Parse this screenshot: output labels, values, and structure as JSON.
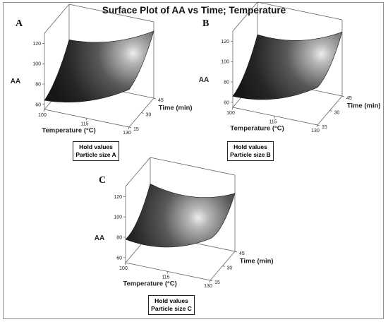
{
  "title": "Surface Plot of AA vs Time; Temperature",
  "chart_data": [
    {
      "type": "surface",
      "panel": "A",
      "xlabel": "Temperature (°C)",
      "ylabel": "Time (min)",
      "zlabel": "AA",
      "x_ticks": [
        "100",
        "115",
        "130"
      ],
      "y_ticks": [
        "15",
        "30",
        "45"
      ],
      "z_ticks": [
        "60",
        "80",
        "100",
        "120"
      ],
      "z_range": [
        55,
        130
      ],
      "corner_values": {
        "t100_15": 64,
        "t130_15": 92,
        "t100_45": 95,
        "t130_45": 121
      },
      "curvature": -12,
      "hold_values": {
        "heading": "Hold values",
        "setting": "Particle size A"
      }
    },
    {
      "type": "surface",
      "panel": "B",
      "xlabel": "Temperature (°C)",
      "ylabel": "Time (min)",
      "zlabel": "AA",
      "x_ticks": [
        "100",
        "115",
        "130"
      ],
      "y_ticks": [
        "15",
        "30",
        "45"
      ],
      "z_ticks": [
        "60",
        "80",
        "100",
        "120"
      ],
      "z_range": [
        55,
        130
      ],
      "corner_values": {
        "t100_15": 66,
        "t130_15": 92,
        "t100_45": 98,
        "t130_45": 118
      },
      "curvature": -14,
      "hold_values": {
        "heading": "Hold values",
        "setting": "Particle size B"
      }
    },
    {
      "type": "surface",
      "panel": "C",
      "xlabel": "Temperature (°C)",
      "ylabel": "Time (min)",
      "zlabel": "AA",
      "x_ticks": [
        "100",
        "115",
        "130"
      ],
      "y_ticks": [
        "15",
        "30",
        "45"
      ],
      "z_ticks": [
        "60",
        "80",
        "100",
        "120"
      ],
      "z_range": [
        55,
        130
      ],
      "corner_values": {
        "t100_15": 78,
        "t130_15": 96,
        "t100_45": 104,
        "t130_45": 112
      },
      "curvature": -16,
      "hold_values": {
        "heading": "Hold values",
        "setting": "Particle size C"
      }
    }
  ]
}
